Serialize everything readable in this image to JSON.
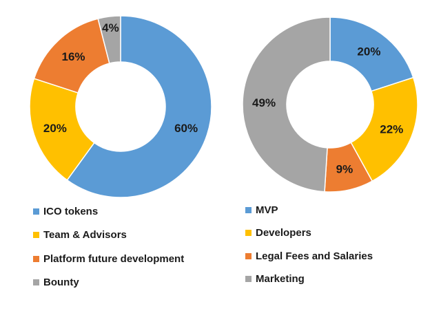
{
  "chart_data": [
    {
      "type": "pie",
      "variant": "donut",
      "slices": [
        {
          "label": "ICO tokens",
          "value": 60,
          "display": "60%",
          "color": "#5b9bd5"
        },
        {
          "label": "Team & Advisors",
          "value": 20,
          "display": "20%",
          "color": "#ffc000"
        },
        {
          "label": "Platform future development",
          "value": 16,
          "display": "16%",
          "color": "#ed7d31"
        },
        {
          "label": "Bounty",
          "value": 4,
          "display": "4%",
          "color": "#a5a5a5"
        }
      ],
      "legend_labels": [
        " ICO tokens",
        "Team & Advisors",
        "Platform future development",
        "Bounty"
      ],
      "legend_position": "bottom"
    },
    {
      "type": "pie",
      "variant": "donut",
      "slices": [
        {
          "label": "MVP",
          "value": 20,
          "display": "20%",
          "color": "#5b9bd5"
        },
        {
          "label": "Developers",
          "value": 22,
          "display": "22%",
          "color": "#ffc000"
        },
        {
          "label": "Legal Fees and Salaries",
          "value": 9,
          "display": "9%",
          "color": "#ed7d31"
        },
        {
          "label": "Marketing",
          "value": 49,
          "display": "49%",
          "color": "#a5a5a5"
        }
      ],
      "legend_labels": [
        "MVP",
        "Developers",
        "Legal Fees and Salaries",
        "Marketing"
      ],
      "legend_position": "bottom"
    }
  ]
}
